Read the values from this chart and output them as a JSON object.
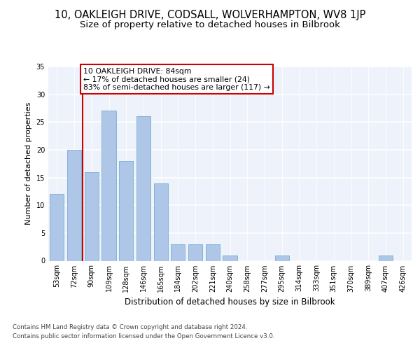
{
  "title1": "10, OAKLEIGH DRIVE, CODSALL, WOLVERHAMPTON, WV8 1JP",
  "title2": "Size of property relative to detached houses in Bilbrook",
  "xlabel": "Distribution of detached houses by size in Bilbrook",
  "ylabel": "Number of detached properties",
  "categories": [
    "53sqm",
    "72sqm",
    "90sqm",
    "109sqm",
    "128sqm",
    "146sqm",
    "165sqm",
    "184sqm",
    "202sqm",
    "221sqm",
    "240sqm",
    "258sqm",
    "277sqm",
    "295sqm",
    "314sqm",
    "333sqm",
    "351sqm",
    "370sqm",
    "389sqm",
    "407sqm",
    "426sqm"
  ],
  "values": [
    12,
    20,
    16,
    27,
    18,
    26,
    14,
    3,
    3,
    3,
    1,
    0,
    0,
    1,
    0,
    0,
    0,
    0,
    0,
    1,
    0
  ],
  "bar_color": "#aec6e8",
  "bar_edge_color": "#7aadce",
  "bar_width": 0.82,
  "vline_x": 1.5,
  "vline_color": "#cc0000",
  "annotation_text": "10 OAKLEIGH DRIVE: 84sqm\n← 17% of detached houses are smaller (24)\n83% of semi-detached houses are larger (117) →",
  "annotation_box_color": "#ffffff",
  "annotation_box_edge": "#cc0000",
  "ylim": [
    0,
    35
  ],
  "yticks": [
    0,
    5,
    10,
    15,
    20,
    25,
    30,
    35
  ],
  "footnote1": "Contains HM Land Registry data © Crown copyright and database right 2024.",
  "footnote2": "Contains public sector information licensed under the Open Government Licence v3.0.",
  "bg_color": "#eef2fb",
  "title1_fontsize": 10.5,
  "title2_fontsize": 9.5,
  "xlabel_fontsize": 8.5,
  "ylabel_fontsize": 8,
  "tick_fontsize": 7,
  "annot_fontsize": 7.8,
  "footnote_fontsize": 6.2
}
